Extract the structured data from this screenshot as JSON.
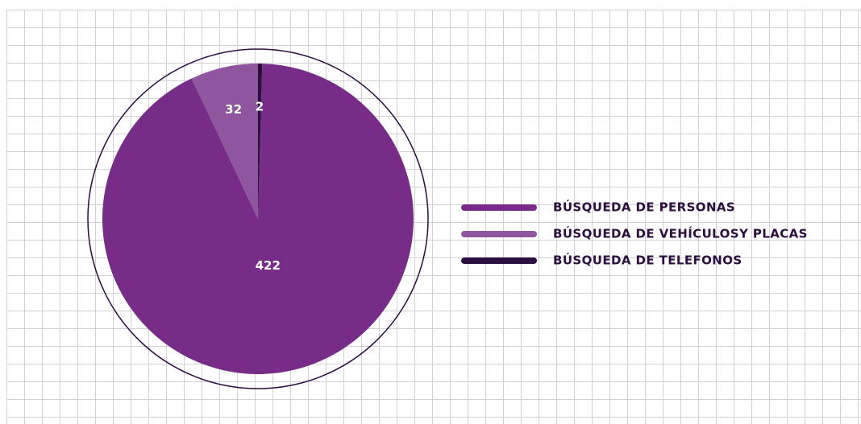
{
  "chart_data": {
    "type": "pie",
    "categories": [
      "BÚSQUEDA DE PERSONAS",
      "BÚSQUEDA DE VEHÍCULOSY PLACAS",
      "BÚSQUEDA DE TELEFONOS"
    ],
    "values": [
      422,
      32,
      2
    ],
    "colors": [
      "#772d87",
      "#8f559f",
      "#2a0f3f"
    ],
    "legend": "right"
  }
}
